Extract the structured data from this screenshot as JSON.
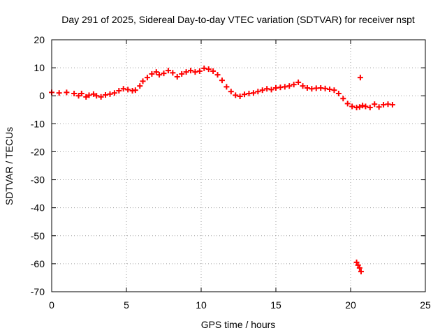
{
  "chart_data": {
    "type": "scatter",
    "title": "Day 291 of 2025, Sidereal Day-to-day VTEC variation (SDTVAR) for receiver nspt",
    "xlabel": "GPS time / hours",
    "ylabel": "SDTVAR / TECUs",
    "xlim": [
      0,
      25
    ],
    "ylim": [
      -70,
      20
    ],
    "x_ticks": [
      0,
      5,
      10,
      15,
      20,
      25
    ],
    "y_ticks": [
      20,
      10,
      0,
      -10,
      -20,
      -30,
      -40,
      -50,
      -60,
      -70
    ],
    "grid": true,
    "marker": "plus",
    "color": "#ff0000",
    "series": [
      {
        "name": "SDTVAR",
        "x": [
          0.0,
          0.5,
          1.0,
          1.5,
          1.8,
          2.0,
          2.3,
          2.5,
          2.8,
          3.0,
          3.3,
          3.6,
          3.9,
          4.2,
          4.5,
          4.8,
          5.1,
          5.4,
          5.6,
          5.9,
          6.1,
          6.4,
          6.7,
          7.0,
          7.2,
          7.5,
          7.8,
          8.1,
          8.4,
          8.7,
          9.0,
          9.3,
          9.6,
          9.9,
          10.2,
          10.5,
          10.8,
          11.1,
          11.4,
          11.7,
          12.0,
          12.3,
          12.6,
          12.9,
          13.2,
          13.5,
          13.8,
          14.1,
          14.4,
          14.7,
          15.0,
          15.3,
          15.6,
          15.9,
          16.2,
          16.5,
          16.8,
          17.1,
          17.4,
          17.7,
          18.0,
          18.3,
          18.6,
          18.9,
          19.2,
          19.5,
          19.8,
          20.1,
          20.4,
          20.6,
          20.8,
          21.0,
          21.3,
          21.6,
          21.9,
          22.2,
          22.5,
          22.8,
          20.65,
          20.4,
          20.5,
          20.6,
          20.7
        ],
        "y": [
          1.2,
          1.0,
          1.2,
          0.8,
          0.0,
          0.8,
          -0.4,
          0.2,
          0.6,
          0.0,
          -0.4,
          0.3,
          0.6,
          1.0,
          1.8,
          2.5,
          2.2,
          1.8,
          2.0,
          3.5,
          5.2,
          6.5,
          7.8,
          8.5,
          7.5,
          8.0,
          9.0,
          8.2,
          6.8,
          7.8,
          8.5,
          9.0,
          8.5,
          8.8,
          9.8,
          9.5,
          8.8,
          7.5,
          5.5,
          3.2,
          1.5,
          0.2,
          -0.2,
          0.5,
          0.8,
          1.0,
          1.5,
          2.0,
          2.5,
          2.2,
          2.8,
          3.0,
          3.2,
          3.5,
          4.0,
          4.8,
          3.5,
          2.8,
          2.5,
          2.7,
          2.8,
          2.6,
          2.3,
          2.0,
          0.8,
          -1.0,
          -2.8,
          -3.8,
          -4.2,
          -4.0,
          -3.5,
          -3.8,
          -4.2,
          -3.0,
          -4.0,
          -3.2,
          -3.0,
          -3.2,
          6.5,
          -59.5,
          -60.5,
          -61.5,
          -62.8
        ]
      }
    ]
  }
}
